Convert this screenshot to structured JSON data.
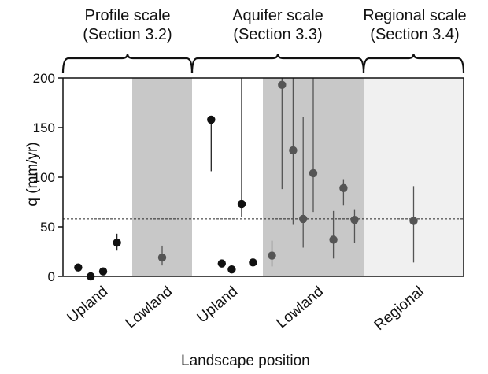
{
  "scale_groups": [
    {
      "title": "Profile scale",
      "section": "(Section 3.2)"
    },
    {
      "title": "Aquifer scale",
      "section": "(Section 3.3)"
    },
    {
      "title": "Regional scale",
      "section": "(Section 3.4)"
    }
  ],
  "chart_data": {
    "type": "scatter",
    "title": "",
    "xlabel": "Landscape position",
    "ylabel": "q (mm/yr)",
    "ylim": [
      0,
      200
    ],
    "yticks": [
      0,
      50,
      100,
      150,
      200
    ],
    "categories": [
      "Upland",
      "Lowland",
      "Upland",
      "Lowland",
      "Regional"
    ],
    "category_groups": [
      "Profile scale",
      "Profile scale",
      "Aquifer scale",
      "Aquifer scale",
      "Regional scale"
    ],
    "shaded_categories": {
      "Lowland": "#c8c8c8",
      "Regional": "#f0f0f0"
    },
    "reference_line": {
      "y": 58,
      "style": "dashed"
    },
    "grid": false,
    "colors": {
      "upland_point": "#111111",
      "lowland_point": "#555555",
      "error_bar": "#555555"
    },
    "points": [
      {
        "category": "Upland",
        "group": "Profile scale",
        "x": 0.22,
        "y": 9
      },
      {
        "category": "Upland",
        "group": "Profile scale",
        "x": 0.4,
        "y": 0
      },
      {
        "category": "Upland",
        "group": "Profile scale",
        "x": 0.58,
        "y": 5
      },
      {
        "category": "Upland",
        "group": "Profile scale",
        "x": 0.78,
        "y": 34,
        "low": 26,
        "high": 43
      },
      {
        "category": "Lowland",
        "group": "Profile scale",
        "x": 0.5,
        "y": 19,
        "low": 11,
        "high": 31
      },
      {
        "category": "Upland",
        "group": "Aquifer scale",
        "x": 0.27,
        "y": 158,
        "low": 106,
        "high": 158
      },
      {
        "category": "Upland",
        "group": "Aquifer scale",
        "x": 0.42,
        "y": 13
      },
      {
        "category": "Upland",
        "group": "Aquifer scale",
        "x": 0.56,
        "y": 7
      },
      {
        "category": "Upland",
        "group": "Aquifer scale",
        "x": 0.7,
        "y": 73,
        "low": 60,
        "high": 200
      },
      {
        "category": "Upland",
        "group": "Aquifer scale",
        "x": 0.86,
        "y": 14
      },
      {
        "category": "Lowland",
        "group": "Aquifer scale",
        "x": 0.09,
        "y": 21,
        "low": 10,
        "high": 36
      },
      {
        "category": "Lowland",
        "group": "Aquifer scale",
        "x": 0.19,
        "y": 193,
        "low": 88,
        "high": 200
      },
      {
        "category": "Lowland",
        "group": "Aquifer scale",
        "x": 0.3,
        "y": 127,
        "low": 52,
        "high": 200
      },
      {
        "category": "Lowland",
        "group": "Aquifer scale",
        "x": 0.4,
        "y": 58,
        "low": 29,
        "high": 161
      },
      {
        "category": "Lowland",
        "group": "Aquifer scale",
        "x": 0.5,
        "y": 104,
        "low": 65,
        "high": 200
      },
      {
        "category": "Lowland",
        "group": "Aquifer scale",
        "x": 0.7,
        "y": 37,
        "low": 18,
        "high": 66
      },
      {
        "category": "Lowland",
        "group": "Aquifer scale",
        "x": 0.8,
        "y": 89,
        "low": 72,
        "high": 98
      },
      {
        "category": "Lowland",
        "group": "Aquifer scale",
        "x": 0.91,
        "y": 57,
        "low": 34,
        "high": 67
      },
      {
        "category": "Regional",
        "group": "Regional scale",
        "x": 0.5,
        "y": 56,
        "low": 14,
        "high": 91
      }
    ]
  }
}
